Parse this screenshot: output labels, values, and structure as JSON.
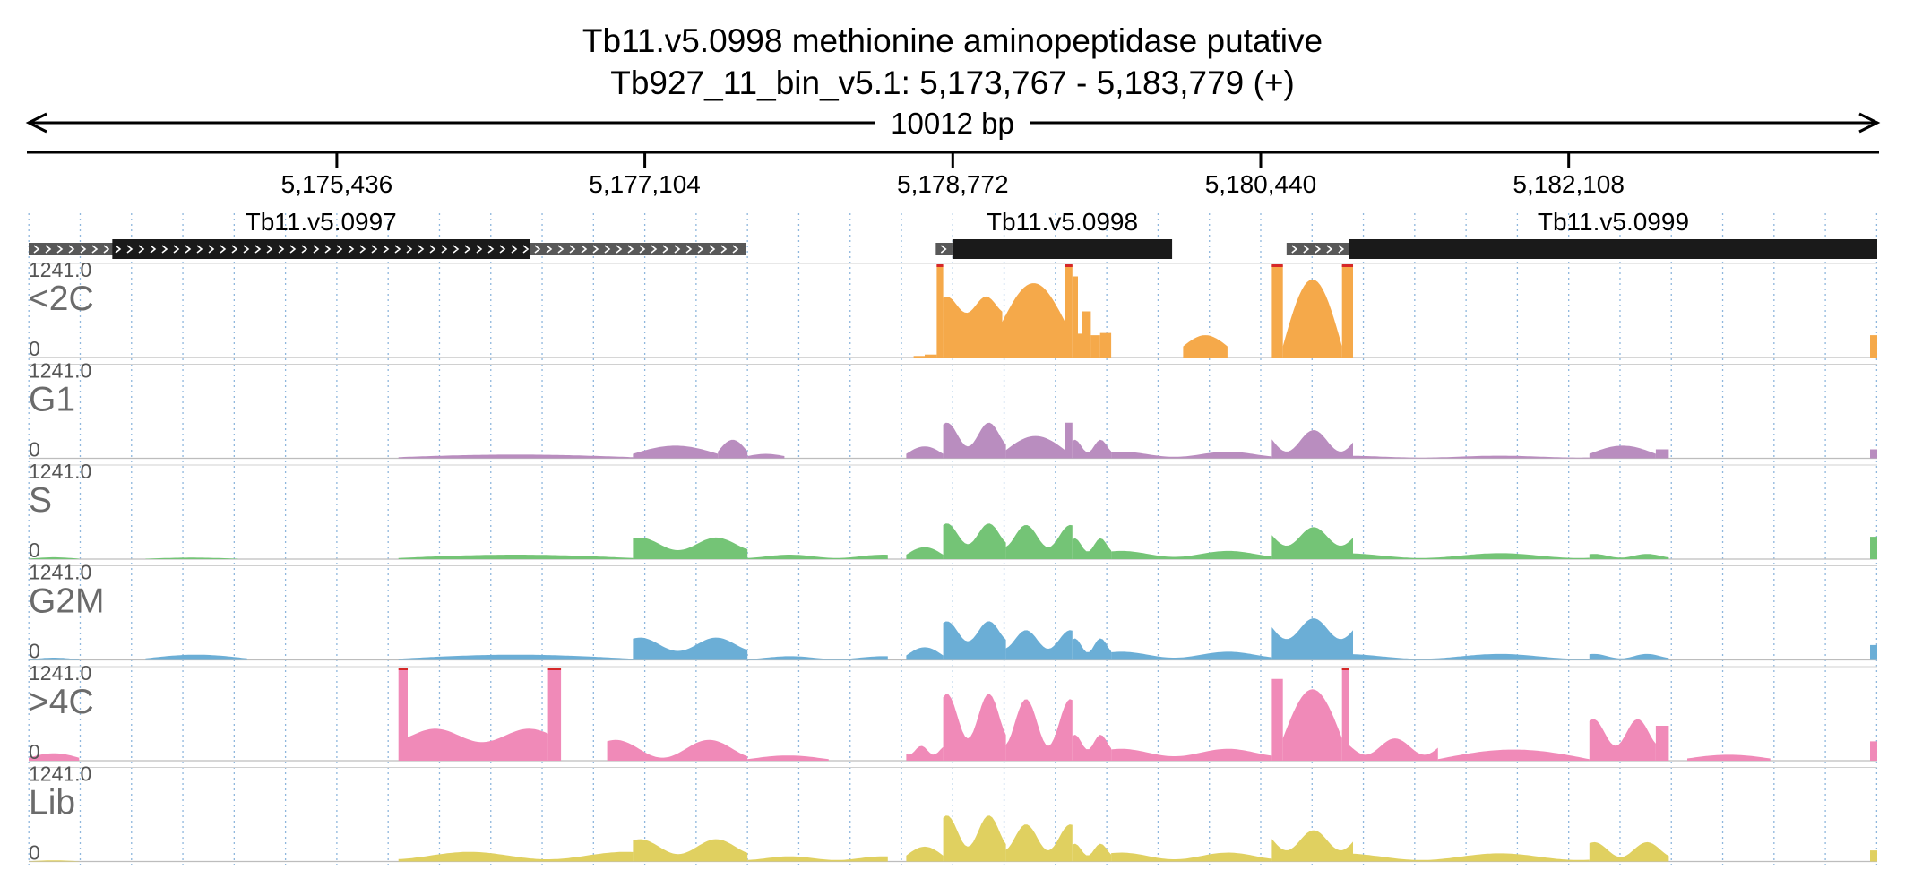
{
  "header": {
    "title_line1": "Tb11.v5.0998  methionine aminopeptidase  putative",
    "title_line2": "Tb927_11_bin_v5.1: 5,173,767 - 5,183,779 (+)",
    "span_label": "10012 bp"
  },
  "chart_data": {
    "type": "area",
    "chromosome": "Tb927_11_bin_v5.1",
    "strand": "+",
    "region": [
      5173767,
      5183779
    ],
    "axis_ticks": [
      {
        "pos": 5175436,
        "label": "5,175,436"
      },
      {
        "pos": 5177104,
        "label": "5,177,104"
      },
      {
        "pos": 5178772,
        "label": "5,178,772"
      },
      {
        "pos": 5180440,
        "label": "5,180,440"
      },
      {
        "pos": 5182108,
        "label": "5,182,108"
      }
    ],
    "genes": [
      {
        "id": "Tb11.v5.0997",
        "utr": [
          5173767,
          5177650
        ],
        "cds": [
          5174220,
          5176480
        ]
      },
      {
        "id": "Tb11.v5.0998",
        "utr": [
          5178680,
          5178770
        ],
        "cds": [
          5178770,
          5179960
        ]
      },
      {
        "id": "Tb11.v5.0999",
        "utr": [
          5180580,
          5180920
        ],
        "cds": [
          5180920,
          5183779
        ]
      }
    ],
    "y_max_label": "1241.0",
    "y_min_label": "0",
    "ylim": [
      0,
      1241
    ],
    "tracks": [
      {
        "name": "<2C",
        "color": "#f5a94a",
        "segments": [
          {
            "start": 5178560,
            "end": 5178620,
            "profile": "flat",
            "base": 20,
            "peak": 20
          },
          {
            "start": 5178620,
            "end": 5178685,
            "profile": "flat",
            "base": 40,
            "peak": 40
          },
          {
            "start": 5178685,
            "end": 5178720,
            "profile": "flat",
            "base": 1241,
            "peak": 1241
          },
          {
            "start": 5178720,
            "end": 5179040,
            "profile": "wave",
            "base": 600,
            "peak": 820
          },
          {
            "start": 5179040,
            "end": 5179380,
            "profile": "hump",
            "base": 480,
            "peak": 1000
          },
          {
            "start": 5179380,
            "end": 5179420,
            "profile": "flat",
            "base": 1241,
            "peak": 1241
          },
          {
            "start": 5179420,
            "end": 5179450,
            "profile": "flat",
            "base": 1090,
            "peak": 1090
          },
          {
            "start": 5179450,
            "end": 5179470,
            "profile": "flat",
            "base": 320,
            "peak": 320
          },
          {
            "start": 5179470,
            "end": 5179520,
            "profile": "flat",
            "base": 620,
            "peak": 620
          },
          {
            "start": 5179520,
            "end": 5179570,
            "profile": "flat",
            "base": 300,
            "peak": 300
          },
          {
            "start": 5179570,
            "end": 5179630,
            "profile": "flat",
            "base": 330,
            "peak": 330
          },
          {
            "start": 5180020,
            "end": 5180260,
            "profile": "hump",
            "base": 150,
            "peak": 300
          },
          {
            "start": 5180500,
            "end": 5180560,
            "profile": "flat",
            "base": 1241,
            "peak": 1241
          },
          {
            "start": 5180560,
            "end": 5180880,
            "profile": "hump",
            "base": 150,
            "peak": 1050
          },
          {
            "start": 5180880,
            "end": 5180940,
            "profile": "flat",
            "base": 1241,
            "peak": 1241
          },
          {
            "start": 5183740,
            "end": 5183779,
            "profile": "flat",
            "base": 300,
            "peak": 300
          }
        ]
      },
      {
        "name": "G1",
        "color": "#b98dbf",
        "segments": [
          {
            "start": 5175770,
            "end": 5177040,
            "profile": "hump",
            "base": 15,
            "peak": 50
          },
          {
            "start": 5177040,
            "end": 5177500,
            "profile": "hump",
            "base": 60,
            "peak": 170
          },
          {
            "start": 5177500,
            "end": 5177660,
            "profile": "hump",
            "base": 90,
            "peak": 250
          },
          {
            "start": 5177660,
            "end": 5177860,
            "profile": "hump",
            "base": 30,
            "peak": 60
          },
          {
            "start": 5178520,
            "end": 5178720,
            "profile": "hump",
            "base": 60,
            "peak": 160
          },
          {
            "start": 5178720,
            "end": 5179060,
            "profile": "wave",
            "base": 160,
            "peak": 480
          },
          {
            "start": 5179060,
            "end": 5179380,
            "profile": "hump",
            "base": 110,
            "peak": 300
          },
          {
            "start": 5179380,
            "end": 5179420,
            "profile": "flat",
            "base": 480,
            "peak": 480
          },
          {
            "start": 5179420,
            "end": 5179630,
            "profile": "wave",
            "base": 80,
            "peak": 250
          },
          {
            "start": 5179630,
            "end": 5180500,
            "profile": "wave",
            "base": 20,
            "peak": 90
          },
          {
            "start": 5180500,
            "end": 5180940,
            "profile": "wave",
            "base": 90,
            "peak": 380
          },
          {
            "start": 5180940,
            "end": 5182220,
            "profile": "wave",
            "base": 10,
            "peak": 35
          },
          {
            "start": 5182220,
            "end": 5182580,
            "profile": "hump",
            "base": 60,
            "peak": 170
          },
          {
            "start": 5182580,
            "end": 5182650,
            "profile": "flat",
            "base": 120,
            "peak": 120
          },
          {
            "start": 5183740,
            "end": 5183779,
            "profile": "flat",
            "base": 120,
            "peak": 120
          }
        ]
      },
      {
        "name": "S",
        "color": "#74c476",
        "segments": [
          {
            "start": 5173767,
            "end": 5174040,
            "profile": "hump",
            "base": 5,
            "peak": 25
          },
          {
            "start": 5174400,
            "end": 5174900,
            "profile": "hump",
            "base": 5,
            "peak": 20
          },
          {
            "start": 5175770,
            "end": 5177040,
            "profile": "hump",
            "base": 15,
            "peak": 60
          },
          {
            "start": 5177040,
            "end": 5177660,
            "profile": "wave",
            "base": 120,
            "peak": 290
          },
          {
            "start": 5177660,
            "end": 5178420,
            "profile": "wave",
            "base": 15,
            "peak": 60
          },
          {
            "start": 5178520,
            "end": 5178720,
            "profile": "hump",
            "base": 60,
            "peak": 160
          },
          {
            "start": 5178720,
            "end": 5179060,
            "profile": "wave",
            "base": 200,
            "peak": 480
          },
          {
            "start": 5179060,
            "end": 5179420,
            "profile": "wave",
            "base": 160,
            "peak": 460
          },
          {
            "start": 5179420,
            "end": 5179630,
            "profile": "wave",
            "base": 100,
            "peak": 280
          },
          {
            "start": 5179630,
            "end": 5180500,
            "profile": "wave",
            "base": 30,
            "peak": 110
          },
          {
            "start": 5180500,
            "end": 5180940,
            "profile": "wave",
            "base": 180,
            "peak": 430
          },
          {
            "start": 5180940,
            "end": 5182220,
            "profile": "wave",
            "base": 15,
            "peak": 80
          },
          {
            "start": 5182220,
            "end": 5182650,
            "profile": "wave",
            "base": 20,
            "peak": 70
          },
          {
            "start": 5183740,
            "end": 5183779,
            "profile": "flat",
            "base": 300,
            "peak": 300
          }
        ]
      },
      {
        "name": "G2M",
        "color": "#6baed6",
        "segments": [
          {
            "start": 5173767,
            "end": 5174040,
            "profile": "hump",
            "base": 5,
            "peak": 30
          },
          {
            "start": 5174400,
            "end": 5174950,
            "profile": "hump",
            "base": 20,
            "peak": 70
          },
          {
            "start": 5175770,
            "end": 5177040,
            "profile": "hump",
            "base": 15,
            "peak": 70
          },
          {
            "start": 5177040,
            "end": 5177660,
            "profile": "wave",
            "base": 120,
            "peak": 300
          },
          {
            "start": 5177660,
            "end": 5178420,
            "profile": "wave",
            "base": 10,
            "peak": 50
          },
          {
            "start": 5178520,
            "end": 5178720,
            "profile": "hump",
            "base": 60,
            "peak": 170
          },
          {
            "start": 5178720,
            "end": 5179060,
            "profile": "wave",
            "base": 250,
            "peak": 520
          },
          {
            "start": 5179060,
            "end": 5179420,
            "profile": "wave",
            "base": 150,
            "peak": 400
          },
          {
            "start": 5179420,
            "end": 5179630,
            "profile": "wave",
            "base": 100,
            "peak": 290
          },
          {
            "start": 5179630,
            "end": 5180500,
            "profile": "wave",
            "base": 30,
            "peak": 110
          },
          {
            "start": 5180500,
            "end": 5180940,
            "profile": "wave",
            "base": 280,
            "peak": 560
          },
          {
            "start": 5180940,
            "end": 5182220,
            "profile": "wave",
            "base": 15,
            "peak": 80
          },
          {
            "start": 5182220,
            "end": 5182650,
            "profile": "wave",
            "base": 20,
            "peak": 80
          },
          {
            "start": 5183740,
            "end": 5183779,
            "profile": "flat",
            "base": 200,
            "peak": 200
          }
        ]
      },
      {
        "name": ">4C",
        "color": "#f08ab8",
        "segments": [
          {
            "start": 5173767,
            "end": 5174040,
            "profile": "hump",
            "base": 40,
            "peak": 100
          },
          {
            "start": 5175770,
            "end": 5175820,
            "profile": "flat",
            "base": 1241,
            "peak": 1241
          },
          {
            "start": 5175820,
            "end": 5176580,
            "profile": "wave",
            "base": 250,
            "peak": 430
          },
          {
            "start": 5176580,
            "end": 5176650,
            "profile": "flat",
            "base": 1241,
            "peak": 1241
          },
          {
            "start": 5176900,
            "end": 5177660,
            "profile": "wave",
            "base": 40,
            "peak": 280
          },
          {
            "start": 5177660,
            "end": 5178100,
            "profile": "hump",
            "base": 20,
            "peak": 70
          },
          {
            "start": 5178520,
            "end": 5178720,
            "profile": "wave",
            "base": 80,
            "peak": 200
          },
          {
            "start": 5178720,
            "end": 5179060,
            "profile": "wave",
            "base": 300,
            "peak": 900
          },
          {
            "start": 5179060,
            "end": 5179420,
            "profile": "wave",
            "base": 200,
            "peak": 830
          },
          {
            "start": 5179420,
            "end": 5179630,
            "profile": "wave",
            "base": 150,
            "peak": 350
          },
          {
            "start": 5179630,
            "end": 5180500,
            "profile": "wave",
            "base": 60,
            "peak": 160
          },
          {
            "start": 5180500,
            "end": 5180560,
            "profile": "flat",
            "base": 1100,
            "peak": 1100
          },
          {
            "start": 5180560,
            "end": 5180880,
            "profile": "hump",
            "base": 300,
            "peak": 960
          },
          {
            "start": 5180880,
            "end": 5180920,
            "profile": "flat",
            "base": 1241,
            "peak": 1241
          },
          {
            "start": 5180920,
            "end": 5181400,
            "profile": "wave",
            "base": 80,
            "peak": 300
          },
          {
            "start": 5181400,
            "end": 5182220,
            "profile": "hump",
            "base": 20,
            "peak": 150
          },
          {
            "start": 5182220,
            "end": 5182580,
            "profile": "wave",
            "base": 200,
            "peak": 560
          },
          {
            "start": 5182580,
            "end": 5182650,
            "profile": "flat",
            "base": 470,
            "peak": 470
          },
          {
            "start": 5182750,
            "end": 5183200,
            "profile": "hump",
            "base": 30,
            "peak": 80
          },
          {
            "start": 5183740,
            "end": 5183779,
            "profile": "flat",
            "base": 260,
            "peak": 260
          }
        ]
      },
      {
        "name": "Lib",
        "color": "#e0d060",
        "segments": [
          {
            "start": 5173767,
            "end": 5174040,
            "profile": "hump",
            "base": 3,
            "peak": 15
          },
          {
            "start": 5175770,
            "end": 5177040,
            "profile": "wave",
            "base": 30,
            "peak": 130
          },
          {
            "start": 5177040,
            "end": 5177660,
            "profile": "wave",
            "base": 100,
            "peak": 300
          },
          {
            "start": 5177660,
            "end": 5178420,
            "profile": "wave",
            "base": 20,
            "peak": 70
          },
          {
            "start": 5178520,
            "end": 5178720,
            "profile": "hump",
            "base": 80,
            "peak": 200
          },
          {
            "start": 5178720,
            "end": 5179060,
            "profile": "wave",
            "base": 200,
            "peak": 620
          },
          {
            "start": 5179060,
            "end": 5179420,
            "profile": "wave",
            "base": 150,
            "peak": 500
          },
          {
            "start": 5179420,
            "end": 5179630,
            "profile": "wave",
            "base": 80,
            "peak": 240
          },
          {
            "start": 5179630,
            "end": 5180500,
            "profile": "wave",
            "base": 30,
            "peak": 120
          },
          {
            "start": 5180500,
            "end": 5180940,
            "profile": "wave",
            "base": 150,
            "peak": 420
          },
          {
            "start": 5180940,
            "end": 5182220,
            "profile": "wave",
            "base": 20,
            "peak": 110
          },
          {
            "start": 5182220,
            "end": 5182650,
            "profile": "wave",
            "base": 60,
            "peak": 260
          },
          {
            "start": 5183740,
            "end": 5183779,
            "profile": "flat",
            "base": 150,
            "peak": 150
          }
        ]
      }
    ]
  }
}
